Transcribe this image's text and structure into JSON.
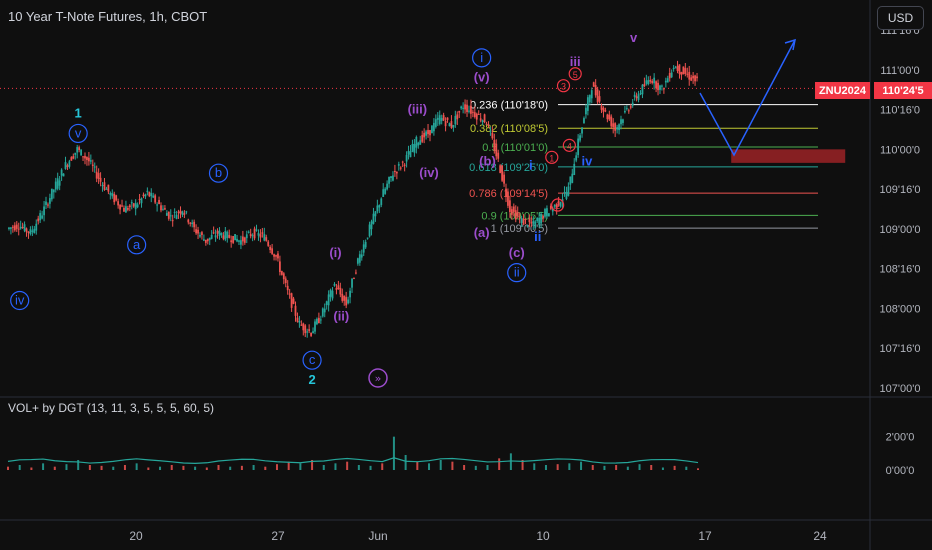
{
  "header": {
    "title": "10 Year T-Note Futures, 1h, CBOT",
    "currency_button": "USD"
  },
  "indicator": {
    "title": "VOL+ by DGT (13, 11, 3, 5, 5, 5, 60, 5)"
  },
  "last_price": {
    "ticker": "ZNU2024",
    "price": "110'24'5",
    "color": "#f23645"
  },
  "colors": {
    "background": "#0f0f0f",
    "up": "#26a69a",
    "down": "#ef5350",
    "wave_blue": "#2962ff",
    "wave_purple": "#9c4dcc",
    "wave_teal": "#26c6da",
    "wave_red": "#f23645"
  },
  "chart_data": [
    {
      "type": "candlestick",
      "title": "10 Year T-Note Futures, 1h, CBOT",
      "x_ticks": [
        "20",
        "27",
        "Jun",
        "10",
        "17",
        "24"
      ],
      "y_ticks": [
        "107'00'0",
        "107'16'0",
        "108'00'0",
        "108'16'0",
        "109'00'0",
        "109'16'0",
        "110'00'0",
        "110'16'0",
        "111'00'0",
        "111'16'0"
      ],
      "ylim": [
        106.95,
        111.5
      ],
      "price_path": [
        {
          "x": 0,
          "y": 109.0
        },
        {
          "x": 1,
          "y": 109.05
        },
        {
          "x": 2,
          "y": 108.95
        },
        {
          "x": 3,
          "y": 109.2
        },
        {
          "x": 4,
          "y": 109.5
        },
        {
          "x": 5,
          "y": 109.8
        },
        {
          "x": 6,
          "y": 110.0
        },
        {
          "x": 7,
          "y": 109.85
        },
        {
          "x": 8,
          "y": 109.6
        },
        {
          "x": 9,
          "y": 109.4
        },
        {
          "x": 10,
          "y": 109.25
        },
        {
          "x": 11,
          "y": 109.3
        },
        {
          "x": 12,
          "y": 109.45
        },
        {
          "x": 13,
          "y": 109.3
        },
        {
          "x": 14,
          "y": 109.15
        },
        {
          "x": 15,
          "y": 109.25
        },
        {
          "x": 16,
          "y": 109.0
        },
        {
          "x": 17,
          "y": 108.85
        },
        {
          "x": 18,
          "y": 108.95
        },
        {
          "x": 19,
          "y": 108.9
        },
        {
          "x": 20,
          "y": 108.85
        },
        {
          "x": 21,
          "y": 108.95
        },
        {
          "x": 22,
          "y": 108.9
        },
        {
          "x": 23,
          "y": 108.65
        },
        {
          "x": 24,
          "y": 108.2
        },
        {
          "x": 25,
          "y": 107.8
        },
        {
          "x": 26,
          "y": 107.7
        },
        {
          "x": 27,
          "y": 107.95
        },
        {
          "x": 28,
          "y": 108.3
        },
        {
          "x": 29,
          "y": 108.05
        },
        {
          "x": 30,
          "y": 108.6
        },
        {
          "x": 31,
          "y": 109.0
        },
        {
          "x": 32,
          "y": 109.4
        },
        {
          "x": 33,
          "y": 109.7
        },
        {
          "x": 34,
          "y": 109.85
        },
        {
          "x": 35,
          "y": 110.1
        },
        {
          "x": 36,
          "y": 110.2
        },
        {
          "x": 37,
          "y": 110.4
        },
        {
          "x": 38,
          "y": 110.3
        },
        {
          "x": 39,
          "y": 110.55
        },
        {
          "x": 40,
          "y": 110.45
        },
        {
          "x": 41,
          "y": 110.35
        },
        {
          "x": 42,
          "y": 109.85
        },
        {
          "x": 43,
          "y": 109.25
        },
        {
          "x": 44,
          "y": 109.1
        },
        {
          "x": 45,
          "y": 109.05
        },
        {
          "x": 46,
          "y": 109.2
        },
        {
          "x": 47,
          "y": 109.3
        },
        {
          "x": 48,
          "y": 109.5
        },
        {
          "x": 49,
          "y": 110.2
        },
        {
          "x": 50,
          "y": 110.8
        },
        {
          "x": 51,
          "y": 110.5
        },
        {
          "x": 52,
          "y": 110.25
        },
        {
          "x": 53,
          "y": 110.5
        },
        {
          "x": 54,
          "y": 110.7
        },
        {
          "x": 55,
          "y": 110.9
        },
        {
          "x": 56,
          "y": 110.75
        },
        {
          "x": 57,
          "y": 111.05
        },
        {
          "x": 58,
          "y": 110.95
        },
        {
          "x": 59,
          "y": 110.85
        }
      ],
      "price_path_note_x_domain": [
        0,
        59
      ],
      "fib_levels": [
        {
          "ratio": "0.236",
          "label": "0.236 (110'18'0)",
          "value": 110.5625,
          "color": "#ffffff"
        },
        {
          "ratio": "0.382",
          "label": "0.382 (110'08'5)",
          "value": 110.2656,
          "color": "#c0ca33"
        },
        {
          "ratio": "0.5",
          "label": "0.5 (110'01'0)",
          "value": 110.03,
          "color": "#4caf50"
        },
        {
          "ratio": "0.618",
          "label": "0.618 (109'25'0)",
          "value": 109.78,
          "color": "#26a69a"
        },
        {
          "ratio": "0.786",
          "label": "0.786 (109'14'5)",
          "value": 109.45,
          "color": "#ef5350"
        },
        {
          "ratio": "0.9",
          "label": "0.9 (109'05'5)",
          "value": 109.17,
          "color": "#4caf50"
        },
        {
          "ratio": "1",
          "label": "1 (109'00'5)",
          "value": 109.01,
          "color": "#9598a1"
        }
      ],
      "wave_labels": [
        {
          "text": "1",
          "x": 6,
          "y": 110.45,
          "color": "#26c6da",
          "circled": false
        },
        {
          "text": "v",
          "x": 6,
          "y": 110.2,
          "color": "#2962ff",
          "circled": true
        },
        {
          "text": "iv",
          "x": 1,
          "y": 108.1,
          "color": "#2962ff",
          "circled": true
        },
        {
          "text": "a",
          "x": 11,
          "y": 108.8,
          "color": "#2962ff",
          "circled": true
        },
        {
          "text": "b",
          "x": 18,
          "y": 109.7,
          "color": "#2962ff",
          "circled": true
        },
        {
          "text": "c",
          "x": 26,
          "y": 107.35,
          "color": "#2962ff",
          "circled": true
        },
        {
          "text": "2",
          "x": 26,
          "y": 107.1,
          "color": "#26c6da",
          "circled": false
        },
        {
          "text": "(i)",
          "x": 28,
          "y": 108.7,
          "color": "#9c4dcc",
          "circled": false
        },
        {
          "text": "(ii)",
          "x": 28.5,
          "y": 107.9,
          "color": "#9c4dcc",
          "circled": false
        },
        {
          "text": "(iii)",
          "x": 35,
          "y": 110.5,
          "color": "#9c4dcc",
          "circled": false
        },
        {
          "text": "(iv)",
          "x": 36,
          "y": 109.7,
          "color": "#9c4dcc",
          "circled": false
        },
        {
          "text": "i",
          "x": 40.5,
          "y": 111.15,
          "color": "#2962ff",
          "circled": true
        },
        {
          "text": "(v)",
          "x": 40.5,
          "y": 110.9,
          "color": "#9c4dcc",
          "circled": false
        },
        {
          "text": "(b)",
          "x": 41,
          "y": 109.85,
          "color": "#9c4dcc",
          "circled": false
        },
        {
          "text": "(a)",
          "x": 40.5,
          "y": 108.95,
          "color": "#9c4dcc",
          "circled": false
        },
        {
          "text": "(c)",
          "x": 43.5,
          "y": 108.7,
          "color": "#9c4dcc",
          "circled": false
        },
        {
          "text": "ii",
          "x": 43.5,
          "y": 108.45,
          "color": "#2962ff",
          "circled": true
        },
        {
          "text": "i",
          "x": 44.7,
          "y": 109.8,
          "color": "#2962ff",
          "circled": false
        },
        {
          "text": "ii",
          "x": 45.3,
          "y": 108.9,
          "color": "#2962ff",
          "circled": false
        },
        {
          "text": "iii",
          "x": 48.5,
          "y": 111.1,
          "color": "#9c4dcc",
          "circled": false
        },
        {
          "text": "iv",
          "x": 49.5,
          "y": 109.85,
          "color": "#2962ff",
          "circled": false
        },
        {
          "text": "v",
          "x": 53.5,
          "y": 111.4,
          "color": "#9c4dcc",
          "circled": false
        },
        {
          "text": "1",
          "x": 46.5,
          "y": 109.9,
          "color": "#f23645",
          "circled": true
        },
        {
          "text": "2",
          "x": 47,
          "y": 109.3,
          "color": "#f23645",
          "circled": true
        },
        {
          "text": "3",
          "x": 47.5,
          "y": 110.8,
          "color": "#f23645",
          "circled": true
        },
        {
          "text": "4",
          "x": 48,
          "y": 110.05,
          "color": "#f23645",
          "circled": true
        },
        {
          "text": "5",
          "x": 48.5,
          "y": 110.95,
          "color": "#f23645",
          "circled": true
        }
      ],
      "projection": [
        {
          "x": 55,
          "y": 110.9
        },
        {
          "x": 58,
          "y": 109.95
        },
        {
          "x": 63,
          "y": 111.45
        }
      ],
      "target_zone": {
        "y_low": 109.83,
        "y_high": 110.0,
        "x_start": 55,
        "x_end": 64
      },
      "last_price_value": 110.7656
    },
    {
      "type": "bar",
      "title": "VOL+ by DGT (13, 11, 3, 5, 5, 5, 60, 5)",
      "y_ticks": [
        "0'00'0",
        "2'00'0"
      ],
      "ylim": [
        0,
        3
      ],
      "values": [
        0.2,
        0.3,
        0.15,
        0.4,
        0.2,
        0.35,
        0.6,
        0.3,
        0.25,
        0.2,
        0.3,
        0.4,
        0.15,
        0.2,
        0.3,
        0.25,
        0.2,
        0.15,
        0.3,
        0.2,
        0.25,
        0.3,
        0.2,
        0.35,
        0.5,
        0.4,
        0.6,
        0.3,
        0.4,
        0.5,
        0.3,
        0.25,
        0.4,
        2.0,
        0.9,
        0.5,
        0.4,
        0.6,
        0.5,
        0.3,
        0.25,
        0.3,
        0.7,
        1.0,
        0.6,
        0.4,
        0.3,
        0.35,
        0.4,
        0.5,
        0.3,
        0.25,
        0.3,
        0.2,
        0.35,
        0.3,
        0.15,
        0.25,
        0.2,
        0.1
      ],
      "colors": [
        "down",
        "up",
        "down",
        "up",
        "down",
        "up",
        "up",
        "down",
        "down",
        "up",
        "down",
        "up",
        "down",
        "up",
        "down",
        "down",
        "up",
        "down",
        "down",
        "up",
        "down",
        "up",
        "down",
        "down",
        "down",
        "up",
        "down",
        "up",
        "up",
        "down",
        "up",
        "up",
        "down",
        "up",
        "up",
        "down",
        "up",
        "up",
        "down",
        "down",
        "up",
        "up",
        "down",
        "up",
        "down",
        "up",
        "up",
        "down",
        "up",
        "up",
        "down",
        "up",
        "down",
        "up",
        "up",
        "down",
        "up",
        "down",
        "up",
        "down"
      ]
    }
  ]
}
